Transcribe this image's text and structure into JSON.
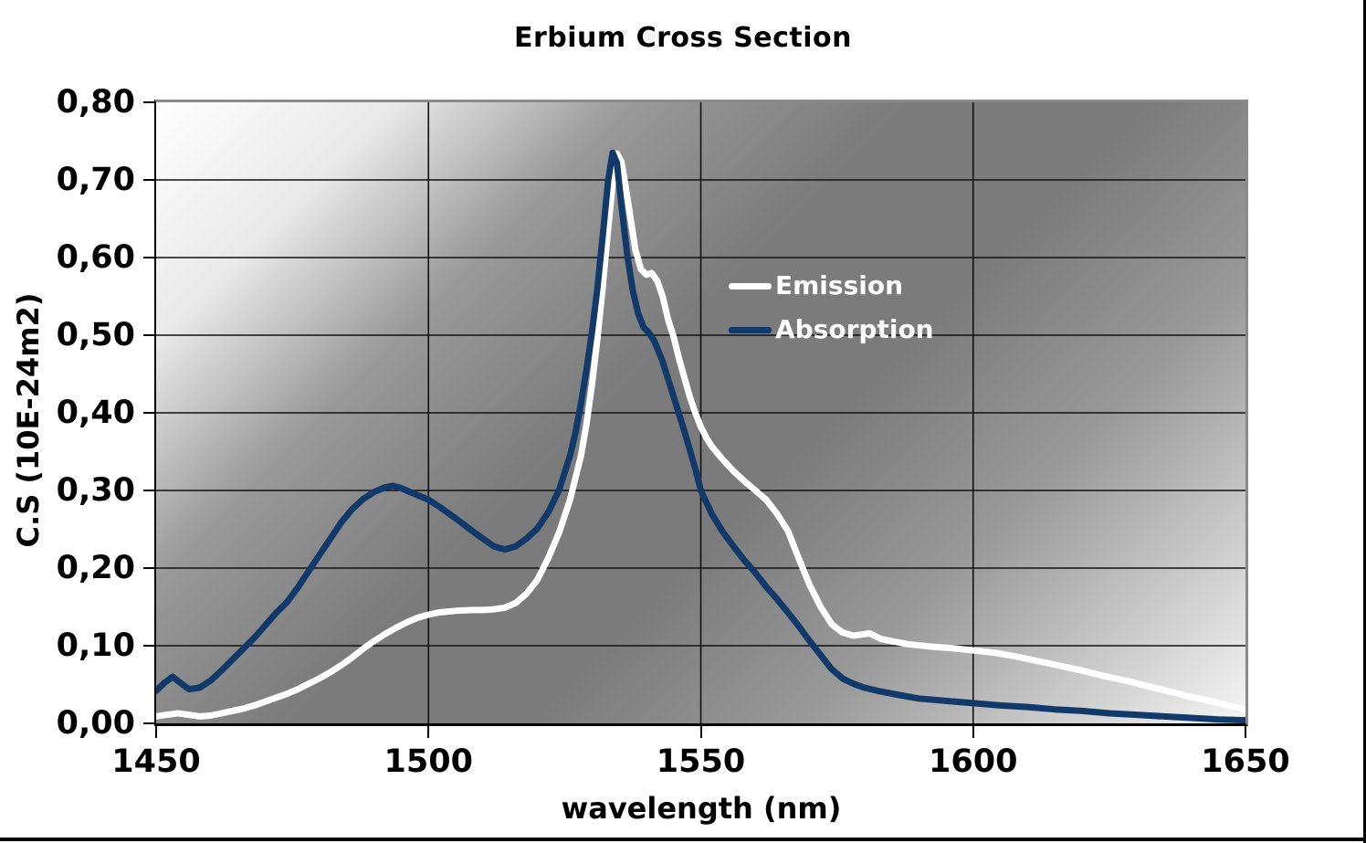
{
  "chart_data": {
    "type": "line",
    "title": "Erbium Cross Section",
    "xlabel": "wavelength (nm)",
    "ylabel": "C.S (10E-24m2)",
    "xlim": [
      1450,
      1650
    ],
    "ylim": [
      0,
      0.8
    ],
    "grid": true,
    "legend_position": "inside-right-of-peak",
    "plot_background": "diagonal gradient white-gray-white",
    "x_ticks": [
      1450,
      1500,
      1550,
      1600,
      1650
    ],
    "x_tick_labels": [
      "1450",
      "1500",
      "1550",
      "1600",
      "1650"
    ],
    "y_ticks": [
      0,
      0.1,
      0.2,
      0.3,
      0.4,
      0.5,
      0.6,
      0.7,
      0.8
    ],
    "y_tick_labels": [
      "0,00",
      "0,10",
      "0,20",
      "0,30",
      "0,40",
      "0,50",
      "0,60",
      "0,70",
      "0,80"
    ],
    "series": [
      {
        "name": "Emission",
        "color": "#ffffff",
        "points": [
          [
            1450,
            0.009
          ],
          [
            1452,
            0.011
          ],
          [
            1454,
            0.013
          ],
          [
            1456,
            0.011
          ],
          [
            1458,
            0.009
          ],
          [
            1460,
            0.01
          ],
          [
            1462,
            0.013
          ],
          [
            1464,
            0.016
          ],
          [
            1466,
            0.019
          ],
          [
            1468,
            0.023
          ],
          [
            1470,
            0.028
          ],
          [
            1472,
            0.033
          ],
          [
            1474,
            0.038
          ],
          [
            1476,
            0.044
          ],
          [
            1478,
            0.051
          ],
          [
            1480,
            0.058
          ],
          [
            1482,
            0.066
          ],
          [
            1484,
            0.075
          ],
          [
            1486,
            0.085
          ],
          [
            1488,
            0.096
          ],
          [
            1490,
            0.106
          ],
          [
            1492,
            0.115
          ],
          [
            1494,
            0.123
          ],
          [
            1496,
            0.13
          ],
          [
            1498,
            0.136
          ],
          [
            1500,
            0.14
          ],
          [
            1502,
            0.143
          ],
          [
            1505,
            0.145
          ],
          [
            1508,
            0.146
          ],
          [
            1510,
            0.146
          ],
          [
            1512,
            0.147
          ],
          [
            1514,
            0.149
          ],
          [
            1516,
            0.155
          ],
          [
            1518,
            0.167
          ],
          [
            1520,
            0.185
          ],
          [
            1522,
            0.213
          ],
          [
            1524,
            0.246
          ],
          [
            1526,
            0.288
          ],
          [
            1528,
            0.345
          ],
          [
            1529,
            0.385
          ],
          [
            1530,
            0.435
          ],
          [
            1531,
            0.495
          ],
          [
            1532,
            0.562
          ],
          [
            1533,
            0.638
          ],
          [
            1534,
            0.708
          ],
          [
            1534.6,
            0.734
          ],
          [
            1535.4,
            0.724
          ],
          [
            1536,
            0.7
          ],
          [
            1537,
            0.655
          ],
          [
            1538,
            0.61
          ],
          [
            1539,
            0.585
          ],
          [
            1540,
            0.578
          ],
          [
            1541,
            0.58
          ],
          [
            1542,
            0.57
          ],
          [
            1543,
            0.55
          ],
          [
            1544,
            0.52
          ],
          [
            1545,
            0.498
          ],
          [
            1546,
            0.47
          ],
          [
            1547,
            0.445
          ],
          [
            1548,
            0.42
          ],
          [
            1549,
            0.4
          ],
          [
            1550,
            0.382
          ],
          [
            1551,
            0.368
          ],
          [
            1552,
            0.357
          ],
          [
            1554,
            0.34
          ],
          [
            1556,
            0.325
          ],
          [
            1558,
            0.312
          ],
          [
            1560,
            0.3
          ],
          [
            1562,
            0.288
          ],
          [
            1564,
            0.27
          ],
          [
            1566,
            0.248
          ],
          [
            1568,
            0.212
          ],
          [
            1570,
            0.178
          ],
          [
            1572,
            0.15
          ],
          [
            1574,
            0.128
          ],
          [
            1576,
            0.117
          ],
          [
            1578,
            0.113
          ],
          [
            1580,
            0.115
          ],
          [
            1581,
            0.116
          ],
          [
            1583,
            0.109
          ],
          [
            1585,
            0.106
          ],
          [
            1588,
            0.102
          ],
          [
            1592,
            0.099
          ],
          [
            1596,
            0.097
          ],
          [
            1600,
            0.094
          ],
          [
            1604,
            0.091
          ],
          [
            1608,
            0.086
          ],
          [
            1612,
            0.08
          ],
          [
            1616,
            0.074
          ],
          [
            1620,
            0.068
          ],
          [
            1624,
            0.061
          ],
          [
            1628,
            0.055
          ],
          [
            1632,
            0.048
          ],
          [
            1636,
            0.041
          ],
          [
            1640,
            0.034
          ],
          [
            1644,
            0.028
          ],
          [
            1648,
            0.021
          ],
          [
            1650,
            0.018
          ]
        ]
      },
      {
        "name": "Absorption",
        "color": "#113a6a",
        "points": [
          [
            1450,
            0.042
          ],
          [
            1451.5,
            0.052
          ],
          [
            1453,
            0.06
          ],
          [
            1454.5,
            0.052
          ],
          [
            1456,
            0.044
          ],
          [
            1458,
            0.046
          ],
          [
            1460,
            0.055
          ],
          [
            1462,
            0.068
          ],
          [
            1464,
            0.082
          ],
          [
            1466,
            0.096
          ],
          [
            1468,
            0.11
          ],
          [
            1470,
            0.126
          ],
          [
            1472,
            0.142
          ],
          [
            1473,
            0.149
          ],
          [
            1474,
            0.156
          ],
          [
            1476,
            0.175
          ],
          [
            1478,
            0.196
          ],
          [
            1480,
            0.217
          ],
          [
            1482,
            0.238
          ],
          [
            1484,
            0.259
          ],
          [
            1486,
            0.276
          ],
          [
            1488,
            0.289
          ],
          [
            1490,
            0.298
          ],
          [
            1492,
            0.304
          ],
          [
            1493.5,
            0.306
          ],
          [
            1495,
            0.303
          ],
          [
            1497,
            0.297
          ],
          [
            1500,
            0.288
          ],
          [
            1502,
            0.279
          ],
          [
            1505,
            0.264
          ],
          [
            1508,
            0.248
          ],
          [
            1510,
            0.238
          ],
          [
            1512,
            0.228
          ],
          [
            1514,
            0.224
          ],
          [
            1516,
            0.228
          ],
          [
            1518,
            0.238
          ],
          [
            1520,
            0.251
          ],
          [
            1522,
            0.272
          ],
          [
            1524,
            0.301
          ],
          [
            1526,
            0.345
          ],
          [
            1527,
            0.375
          ],
          [
            1528,
            0.412
          ],
          [
            1529,
            0.455
          ],
          [
            1530,
            0.503
          ],
          [
            1531,
            0.56
          ],
          [
            1532,
            0.628
          ],
          [
            1533,
            0.7
          ],
          [
            1533.8,
            0.735
          ],
          [
            1534.6,
            0.722
          ],
          [
            1535.5,
            0.663
          ],
          [
            1536.5,
            0.603
          ],
          [
            1537.5,
            0.558
          ],
          [
            1538.5,
            0.528
          ],
          [
            1539.5,
            0.51
          ],
          [
            1540.5,
            0.503
          ],
          [
            1541.5,
            0.492
          ],
          [
            1543,
            0.466
          ],
          [
            1545,
            0.421
          ],
          [
            1547,
            0.376
          ],
          [
            1549,
            0.328
          ],
          [
            1550,
            0.3
          ],
          [
            1552,
            0.27
          ],
          [
            1554,
            0.247
          ],
          [
            1556,
            0.228
          ],
          [
            1558,
            0.21
          ],
          [
            1560,
            0.194
          ],
          [
            1562,
            0.176
          ],
          [
            1564,
            0.16
          ],
          [
            1566,
            0.143
          ],
          [
            1568,
            0.125
          ],
          [
            1570,
            0.106
          ],
          [
            1572,
            0.088
          ],
          [
            1574,
            0.07
          ],
          [
            1576,
            0.058
          ],
          [
            1578,
            0.051
          ],
          [
            1580,
            0.046
          ],
          [
            1583,
            0.041
          ],
          [
            1586,
            0.037
          ],
          [
            1590,
            0.032
          ],
          [
            1595,
            0.029
          ],
          [
            1600,
            0.026
          ],
          [
            1605,
            0.023
          ],
          [
            1610,
            0.021
          ],
          [
            1615,
            0.018
          ],
          [
            1620,
            0.016
          ],
          [
            1625,
            0.013
          ],
          [
            1630,
            0.011
          ],
          [
            1635,
            0.009
          ],
          [
            1640,
            0.007
          ],
          [
            1645,
            0.005
          ],
          [
            1650,
            0.004
          ]
        ]
      }
    ],
    "styles": {
      "line_width": 7,
      "gridline_color": "#111111",
      "axis_color": "#000000",
      "plot_top_right_border_color": "#8a8a8a",
      "frame_color": "#000000",
      "legend_text_color": "#ffffff"
    }
  }
}
